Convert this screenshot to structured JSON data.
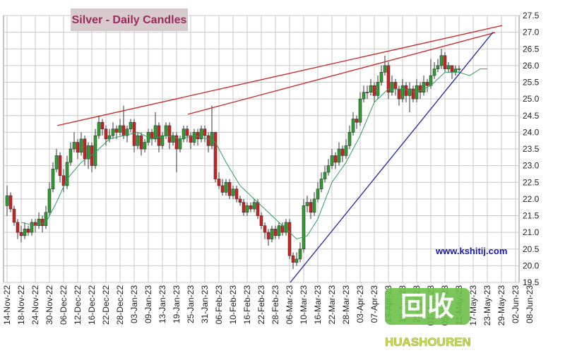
{
  "chart_data": {
    "type": "candlestick",
    "title": "Silver - Daily Candles",
    "source": "www.kshitij.com",
    "watermark": {
      "logo": "回收",
      "text": "HUASHOUREN"
    },
    "up_color": "#2e9e2e",
    "down_color": "#cc2222",
    "grid": true,
    "xlim": [
      -1,
      145
    ],
    "ylim": [
      19.5,
      27.5
    ],
    "yticks": [
      19.5,
      {
        "value": 20,
        "label": "20.0"
      },
      20.5,
      {
        "value": 21,
        "label": "21.0"
      },
      21.5,
      {
        "value": 22,
        "label": "22.0"
      },
      22.5,
      {
        "value": 23,
        "label": "23.0"
      },
      23.5,
      {
        "value": 24,
        "label": "24.0"
      },
      24.5,
      {
        "value": 25,
        "label": "25.0"
      },
      25.5,
      {
        "value": 26,
        "label": "26.0"
      },
      26.5,
      {
        "value": 27,
        "label": "27.0"
      },
      27.5
    ],
    "xticks": [
      {
        "value": 0,
        "label": "14-Nov-22"
      },
      {
        "value": 4,
        "label": "18-Nov-22"
      },
      {
        "value": 8,
        "label": "24-Nov-22"
      },
      {
        "value": 12,
        "label": "30-Nov-22"
      },
      {
        "value": 16,
        "label": "06-Dec-22"
      },
      {
        "value": 20,
        "label": "12-Dec-22"
      },
      {
        "value": 24,
        "label": "16-Dec-22"
      },
      {
        "value": 28,
        "label": "22-Dec-22"
      },
      {
        "value": 32,
        "label": "28-Dec-22"
      },
      {
        "value": 36,
        "label": "03-Jan-23"
      },
      {
        "value": 40,
        "label": "09-Jan-23"
      },
      {
        "value": 44,
        "label": "13-Jan-23"
      },
      {
        "value": 48,
        "label": "19-Jan-23"
      },
      {
        "value": 52,
        "label": "25-Jan-23"
      },
      {
        "value": 56,
        "label": "31-Jan-23"
      },
      {
        "value": 60,
        "label": "06-Feb-23"
      },
      {
        "value": 64,
        "label": "10-Feb-23"
      },
      {
        "value": 68,
        "label": "16-Feb-23"
      },
      {
        "value": 72,
        "label": "22-Feb-23"
      },
      {
        "value": 76,
        "label": "28-Feb-23"
      },
      {
        "value": 80,
        "label": "06-Mar-23"
      },
      {
        "value": 84,
        "label": "10-Mar-23"
      },
      {
        "value": 88,
        "label": "16-Mar-23"
      },
      {
        "value": 92,
        "label": "22-Mar-23"
      },
      {
        "value": 96,
        "label": "28-Mar-23"
      },
      {
        "value": 100,
        "label": "03-Apr-23"
      },
      {
        "value": 104,
        "label": "07-Apr-23"
      },
      {
        "value": 108,
        "label": "13-Apr-23"
      },
      {
        "value": 112,
        "label": "19-Apr-23"
      },
      {
        "value": 116,
        "label": "25-Apr-23"
      },
      {
        "value": 120,
        "label": "01-May-23"
      },
      {
        "value": 124,
        "label": "05-May-23"
      },
      {
        "value": 128,
        "label": "11-May-23"
      },
      {
        "value": 132,
        "label": "17-May-23"
      },
      {
        "value": 136,
        "label": "23-May-23"
      },
      {
        "value": 140,
        "label": "29-May-23"
      },
      {
        "value": 144,
        "label": "02-Jun-23"
      },
      {
        "value": 148,
        "label": "08-Jun-23"
      }
    ],
    "candles": [
      [
        21.8,
        22.4,
        21.5,
        22.1
      ],
      [
        22.1,
        22.2,
        21.6,
        21.7
      ],
      [
        21.7,
        21.8,
        21.2,
        21.3
      ],
      [
        21.3,
        21.4,
        20.8,
        21.0
      ],
      [
        21.0,
        21.2,
        20.7,
        20.9
      ],
      [
        20.9,
        21.3,
        20.8,
        21.1
      ],
      [
        21.1,
        21.2,
        20.9,
        21.0
      ],
      [
        21.0,
        21.4,
        20.9,
        21.3
      ],
      [
        21.3,
        21.4,
        21.0,
        21.2
      ],
      [
        21.2,
        21.6,
        21.1,
        21.4
      ],
      [
        21.4,
        21.5,
        21.0,
        21.2
      ],
      [
        21.2,
        21.8,
        21.1,
        21.6
      ],
      [
        21.6,
        22.5,
        21.5,
        22.3
      ],
      [
        22.3,
        23.1,
        22.2,
        22.9
      ],
      [
        22.9,
        23.5,
        22.8,
        23.3
      ],
      [
        23.3,
        23.4,
        22.5,
        22.7
      ],
      [
        22.7,
        22.9,
        22.2,
        22.4
      ],
      [
        22.4,
        23.3,
        22.3,
        23.1
      ],
      [
        23.1,
        23.7,
        23.0,
        23.5
      ],
      [
        23.5,
        24.0,
        23.4,
        23.7
      ],
      [
        23.7,
        23.8,
        23.2,
        23.4
      ],
      [
        23.4,
        24.0,
        23.3,
        23.8
      ],
      [
        23.8,
        23.9,
        23.0,
        23.2
      ],
      [
        23.2,
        23.7,
        22.9,
        23.6
      ],
      [
        23.6,
        23.7,
        22.8,
        23.0
      ],
      [
        23.0,
        24.1,
        22.9,
        23.9
      ],
      [
        23.9,
        24.5,
        23.8,
        24.3
      ],
      [
        24.3,
        24.4,
        23.9,
        24.1
      ],
      [
        24.1,
        24.2,
        23.6,
        23.8
      ],
      [
        23.8,
        24.1,
        23.7,
        23.9
      ],
      [
        23.9,
        24.3,
        23.8,
        24.1
      ],
      [
        24.1,
        24.2,
        23.8,
        24.0
      ],
      [
        24.0,
        24.4,
        23.9,
        24.2
      ],
      [
        24.2,
        24.8,
        23.8,
        23.9
      ],
      [
        23.9,
        24.2,
        23.7,
        24.1
      ],
      [
        24.1,
        24.4,
        24.0,
        24.3
      ],
      [
        24.3,
        24.4,
        23.4,
        23.6
      ],
      [
        23.6,
        24.0,
        23.5,
        23.9
      ],
      [
        23.9,
        24.0,
        23.3,
        23.5
      ],
      [
        23.5,
        23.8,
        23.4,
        23.7
      ],
      [
        23.7,
        24.1,
        23.6,
        24.0
      ],
      [
        24.0,
        24.1,
        23.6,
        23.8
      ],
      [
        23.8,
        24.6,
        23.7,
        24.2
      ],
      [
        24.2,
        24.3,
        23.4,
        23.6
      ],
      [
        23.6,
        24.0,
        23.5,
        23.9
      ],
      [
        23.9,
        24.3,
        23.8,
        24.2
      ],
      [
        24.2,
        24.3,
        23.5,
        23.7
      ],
      [
        23.7,
        24.0,
        23.6,
        23.9
      ],
      [
        23.9,
        24.0,
        22.8,
        23.5
      ],
      [
        23.5,
        23.9,
        23.4,
        23.8
      ],
      [
        23.8,
        24.2,
        23.7,
        24.1
      ],
      [
        24.1,
        24.2,
        23.7,
        23.9
      ],
      [
        23.9,
        24.0,
        23.5,
        23.7
      ],
      [
        23.7,
        24.1,
        23.6,
        24.0
      ],
      [
        24.0,
        24.1,
        23.6,
        23.8
      ],
      [
        23.8,
        24.2,
        23.7,
        24.1
      ],
      [
        24.1,
        24.2,
        23.7,
        23.9
      ],
      [
        23.9,
        24.0,
        23.4,
        23.6
      ],
      [
        23.6,
        24.8,
        23.5,
        24.0
      ],
      [
        24.0,
        24.0,
        22.5,
        22.6
      ],
      [
        22.6,
        22.8,
        22.3,
        22.4
      ],
      [
        22.4,
        22.6,
        22.1,
        22.2
      ],
      [
        22.2,
        22.6,
        22.1,
        22.5
      ],
      [
        22.5,
        22.6,
        22.0,
        22.1
      ],
      [
        22.1,
        22.4,
        22.0,
        22.3
      ],
      [
        22.3,
        22.4,
        21.9,
        22.0
      ],
      [
        22.0,
        22.1,
        21.8,
        21.9
      ],
      [
        21.9,
        22.0,
        21.5,
        21.6
      ],
      [
        21.6,
        21.9,
        21.5,
        21.8
      ],
      [
        21.8,
        21.9,
        21.6,
        21.7
      ],
      [
        21.7,
        22.0,
        21.6,
        21.9
      ],
      [
        21.9,
        22.0,
        21.4,
        21.5
      ],
      [
        21.5,
        21.6,
        21.1,
        21.2
      ],
      [
        21.2,
        21.3,
        20.8,
        21.0
      ],
      [
        21.0,
        21.1,
        20.6,
        20.8
      ],
      [
        20.8,
        21.2,
        20.7,
        21.1
      ],
      [
        21.1,
        21.2,
        20.8,
        20.9
      ],
      [
        20.9,
        21.3,
        20.8,
        21.2
      ],
      [
        21.2,
        21.3,
        20.9,
        21.0
      ],
      [
        21.0,
        21.4,
        20.9,
        21.3
      ],
      [
        21.3,
        21.4,
        20.2,
        20.3
      ],
      [
        20.3,
        20.4,
        19.9,
        20.1
      ],
      [
        20.1,
        20.4,
        20.0,
        20.2
      ],
      [
        20.2,
        20.7,
        20.1,
        20.5
      ],
      [
        20.5,
        22.0,
        20.4,
        21.8
      ],
      [
        21.8,
        22.1,
        21.6,
        21.9
      ],
      [
        21.9,
        22.0,
        21.4,
        21.6
      ],
      [
        21.6,
        22.2,
        21.5,
        22.0
      ],
      [
        22.0,
        22.5,
        21.9,
        22.3
      ],
      [
        22.3,
        22.8,
        22.2,
        22.6
      ],
      [
        22.6,
        23.0,
        22.5,
        22.8
      ],
      [
        22.8,
        23.2,
        22.7,
        23.0
      ],
      [
        23.0,
        23.5,
        22.9,
        23.3
      ],
      [
        23.3,
        23.4,
        22.9,
        23.1
      ],
      [
        23.1,
        23.7,
        23.0,
        23.5
      ],
      [
        23.5,
        23.6,
        23.1,
        23.3
      ],
      [
        23.3,
        23.8,
        23.2,
        23.6
      ],
      [
        23.6,
        24.2,
        23.5,
        24.0
      ],
      [
        24.0,
        24.6,
        23.9,
        24.4
      ],
      [
        24.4,
        24.5,
        24.1,
        24.3
      ],
      [
        24.3,
        25.2,
        24.2,
        25.0
      ],
      [
        25.0,
        25.4,
        24.9,
        25.2
      ],
      [
        25.2,
        25.4,
        25.0,
        25.2
      ],
      [
        25.2,
        25.6,
        25.1,
        25.4
      ],
      [
        25.4,
        25.5,
        24.9,
        25.1
      ],
      [
        25.1,
        25.7,
        25.0,
        25.5
      ],
      [
        25.5,
        26.0,
        25.4,
        25.8
      ],
      [
        25.8,
        26.3,
        25.7,
        26.0
      ],
      [
        26.0,
        26.1,
        25.0,
        25.2
      ],
      [
        25.2,
        25.7,
        25.1,
        25.5
      ],
      [
        25.5,
        25.6,
        25.1,
        25.3
      ],
      [
        25.3,
        25.4,
        24.8,
        25.0
      ],
      [
        25.0,
        25.6,
        24.9,
        25.4
      ],
      [
        25.4,
        25.5,
        24.9,
        25.1
      ],
      [
        25.1,
        25.5,
        24.6,
        25.3
      ],
      [
        25.3,
        25.4,
        24.9,
        25.0
      ],
      [
        25.0,
        25.6,
        24.9,
        25.4
      ],
      [
        25.4,
        25.5,
        25.0,
        25.2
      ],
      [
        25.2,
        25.7,
        25.1,
        25.5
      ],
      [
        25.5,
        25.6,
        25.2,
        25.4
      ],
      [
        25.4,
        26.2,
        25.3,
        25.7
      ],
      [
        25.7,
        26.1,
        25.6,
        25.9
      ],
      [
        25.9,
        26.2,
        25.8,
        26.0
      ],
      [
        26.0,
        26.5,
        25.9,
        26.3
      ],
      [
        26.3,
        26.4,
        25.8,
        25.9
      ],
      [
        25.9,
        26.1,
        25.8,
        26.0
      ],
      [
        26.0,
        26.0,
        25.6,
        25.8
      ],
      [
        25.8,
        26.0,
        25.7,
        25.9
      ],
      [
        25.9,
        26.0,
        25.8,
        25.9
      ]
    ],
    "moving_average": {
      "color": "#2e9e5e",
      "x": [
        4,
        8,
        11,
        14,
        17,
        21,
        25,
        29,
        33,
        37,
        41,
        45,
        49,
        53,
        57,
        59,
        62,
        66,
        70,
        74,
        78,
        82,
        85,
        88,
        92,
        96,
        100,
        104,
        108,
        112,
        116,
        120,
        124,
        128,
        131,
        134,
        136
      ],
      "y": [
        21.3,
        21.2,
        21.3,
        21.9,
        22.6,
        23.1,
        23.4,
        23.8,
        23.9,
        24.0,
        23.8,
        23.9,
        23.8,
        23.9,
        23.8,
        23.7,
        23.1,
        22.4,
        22.0,
        21.6,
        21.2,
        20.8,
        20.9,
        21.4,
        22.5,
        23.1,
        23.9,
        24.9,
        25.3,
        25.3,
        25.2,
        25.4,
        25.8,
        25.8,
        25.7,
        25.9,
        25.9
      ]
    },
    "trend_lines": [
      {
        "color": "#cc2222",
        "x": [
          14.2,
          140.2
        ],
        "y": [
          24.2,
          27.2
        ]
      },
      {
        "color": "#cc2222",
        "x": [
          51.2,
          138.2
        ],
        "y": [
          24.54,
          26.99
        ]
      },
      {
        "color": "#2222aa",
        "x": [
          80.2,
          137.6
        ],
        "y": [
          19.5,
          27.0
        ]
      }
    ]
  }
}
